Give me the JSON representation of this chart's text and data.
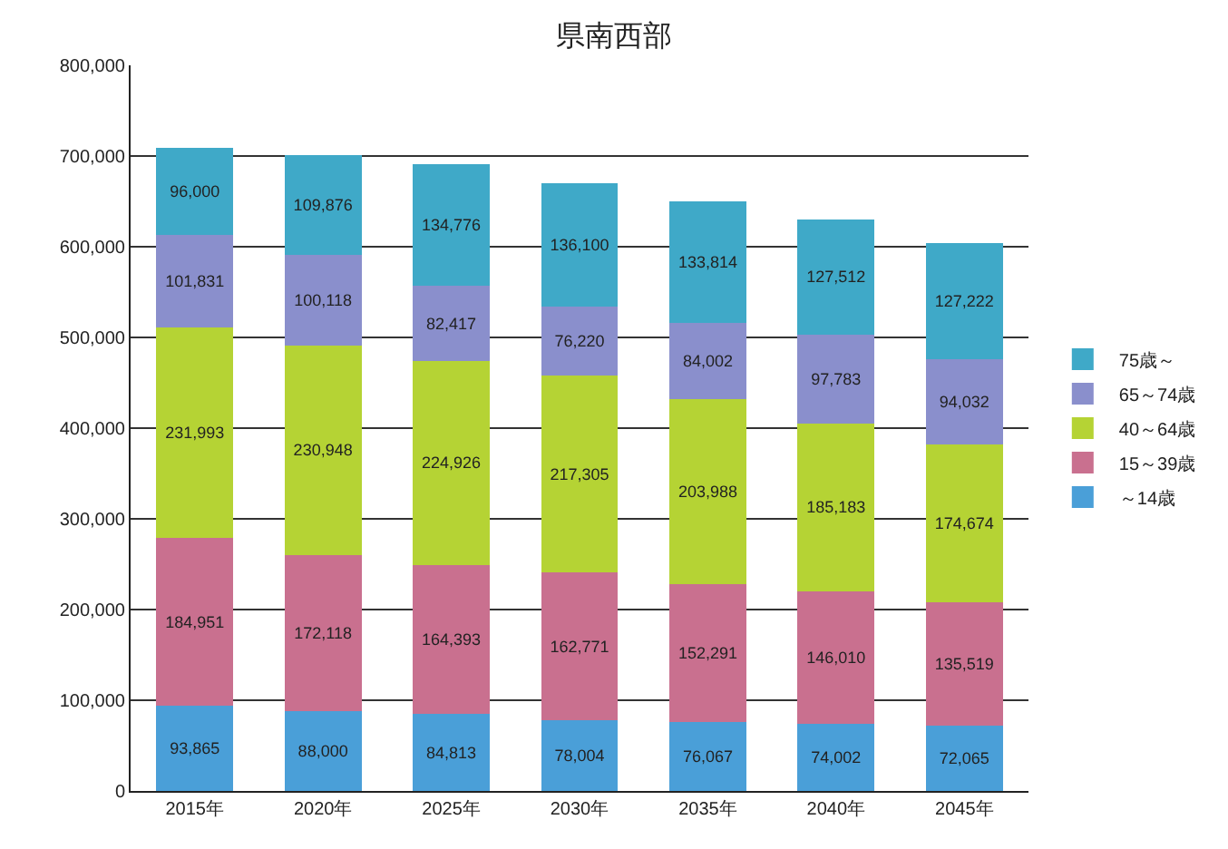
{
  "chart_data": {
    "type": "bar",
    "title": "県南西部",
    "stacked": true,
    "grid": "y",
    "legend": "right",
    "categories": [
      "2015年",
      "2020年",
      "2025年",
      "2030年",
      "2035年",
      "2040年",
      "2045年"
    ],
    "series": [
      {
        "name": "～14歳",
        "color": "#4a9fd8",
        "values": [
          93865,
          88000,
          84813,
          78004,
          76067,
          74002,
          72065
        ],
        "value_labels": [
          "93,865",
          "88,000",
          "84,813",
          "78,004",
          "76,067",
          "74,002",
          "72,065"
        ]
      },
      {
        "name": "15～39歳",
        "color": "#c9708f",
        "values": [
          184951,
          172118,
          164393,
          162771,
          152291,
          146010,
          135519
        ],
        "value_labels": [
          "184,951",
          "172,118",
          "164,393",
          "162,771",
          "152,291",
          "146,010",
          "135,519"
        ]
      },
      {
        "name": "40～64歳",
        "color": "#b5d334",
        "values": [
          231993,
          230948,
          224926,
          217305,
          203988,
          185183,
          174674
        ],
        "value_labels": [
          "231,993",
          "230,948",
          "224,926",
          "217,305",
          "203,988",
          "185,183",
          "174,674"
        ]
      },
      {
        "name": "65～74歳",
        "color": "#8a8fcc",
        "values": [
          101831,
          100118,
          82417,
          76220,
          84002,
          97783,
          94032
        ],
        "value_labels": [
          "101,831",
          "100,118",
          "82,417",
          "76,220",
          "84,002",
          "97,783",
          "94,032"
        ]
      },
      {
        "name": "75歳～",
        "color": "#3fa9c8",
        "values": [
          96000,
          109876,
          134776,
          136100,
          133814,
          127512,
          127222
        ],
        "value_labels": [
          "96,000",
          "109,876",
          "134,776",
          "136,100",
          "133,814",
          "127,512",
          "127,222"
        ]
      }
    ],
    "ylim": [
      0,
      800000
    ],
    "yticks": [
      {
        "value": 0,
        "label": "0"
      },
      {
        "value": 100000,
        "label": "100,000"
      },
      {
        "value": 200000,
        "label": "200,000"
      },
      {
        "value": 300000,
        "label": "300,000"
      },
      {
        "value": 400000,
        "label": "400,000"
      },
      {
        "value": 500000,
        "label": "500,000"
      },
      {
        "value": 600000,
        "label": "600,000"
      },
      {
        "value": 700000,
        "label": "700,000"
      },
      {
        "value": 800000,
        "label": "800,000"
      }
    ]
  }
}
